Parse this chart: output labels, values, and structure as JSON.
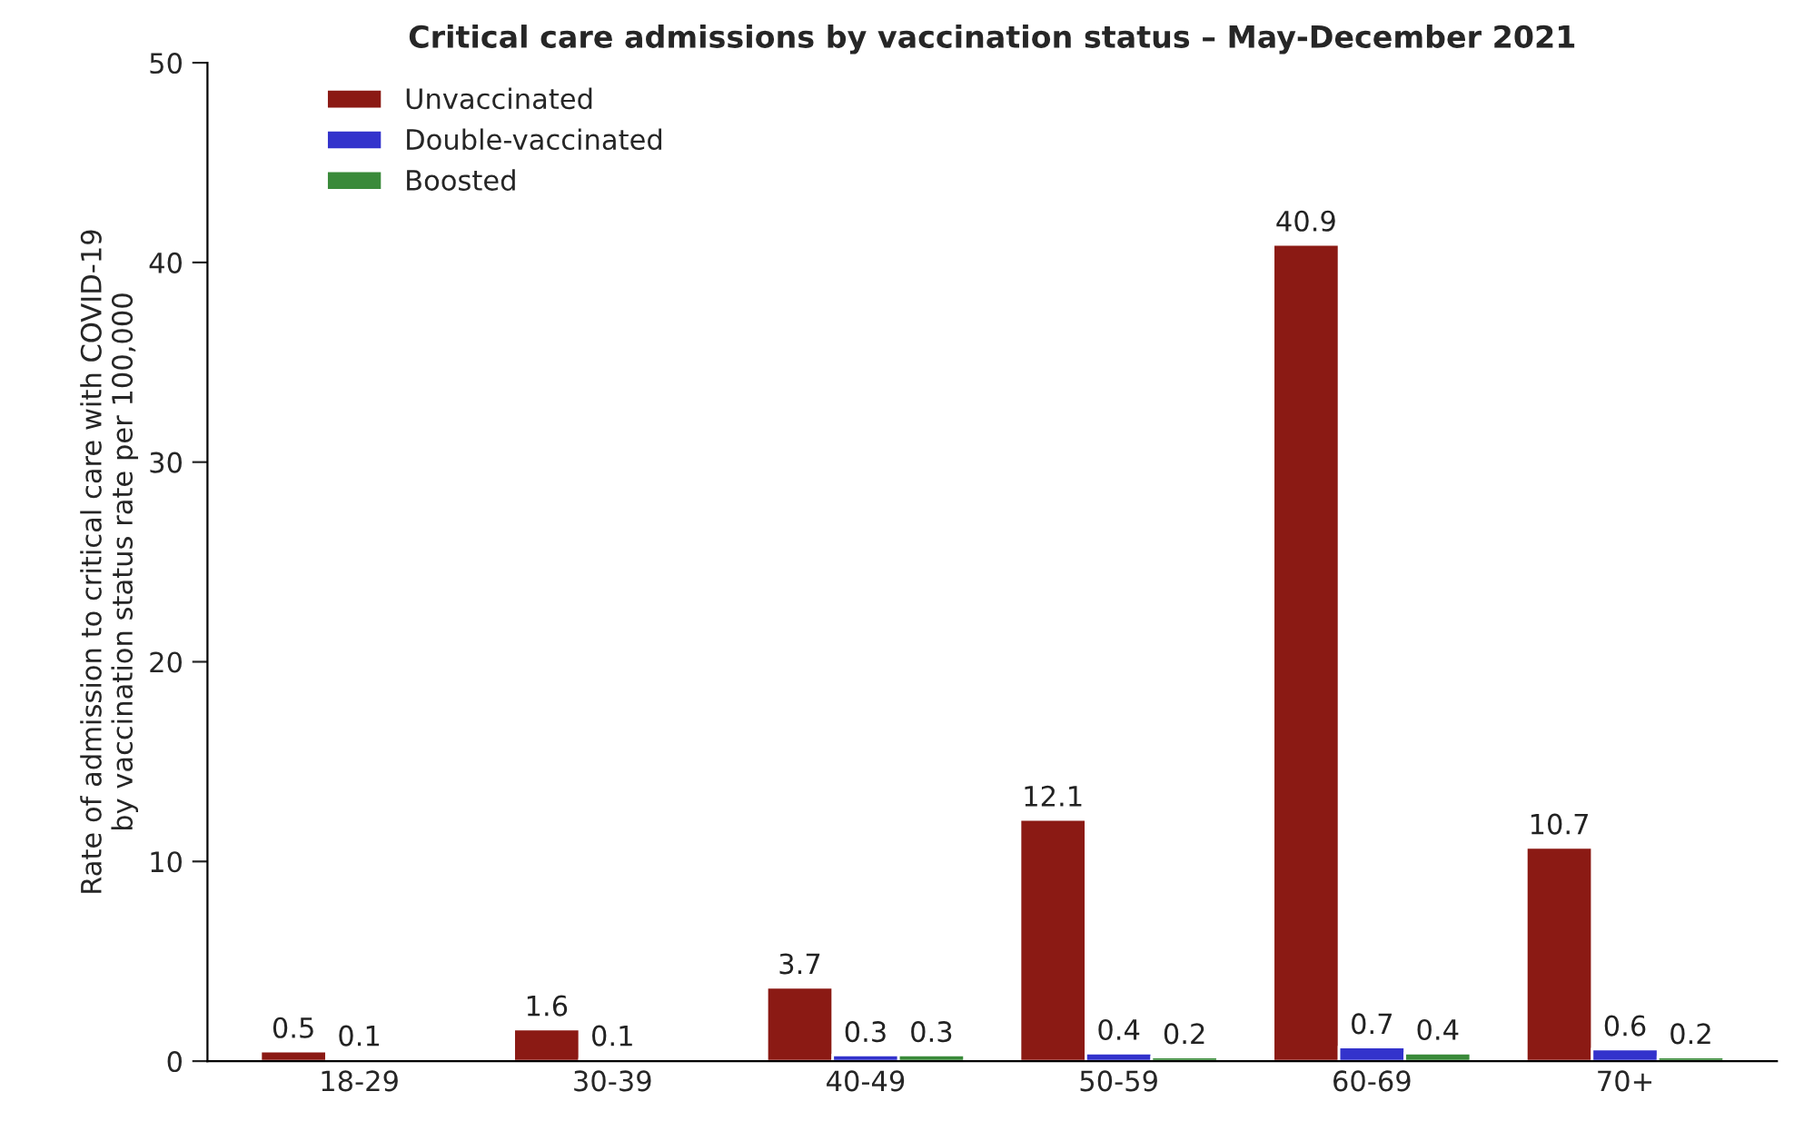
{
  "chart_data": {
    "type": "bar",
    "title": "Critical care admissions by vaccination status – May-December 2021",
    "ylabel": "Rate of admission to critical care with COVID-19\nby vaccination status rate per 100,000",
    "categories": [
      "18-29",
      "30-39",
      "40-49",
      "50-59",
      "60-69",
      "70+"
    ],
    "series": [
      {
        "name": "Unvaccinated",
        "color": "#8b1a14",
        "values": [
          0.5,
          1.6,
          3.7,
          12.1,
          40.9,
          10.7
        ]
      },
      {
        "name": "Double-vaccinated",
        "color": "#3333cc",
        "values": [
          0.1,
          0.1,
          0.3,
          0.4,
          0.7,
          0.6
        ]
      },
      {
        "name": "Boosted",
        "color": "#3a8a3a",
        "values": [
          null,
          null,
          0.3,
          0.2,
          0.4,
          0.2
        ]
      }
    ],
    "ylim": [
      0,
      50
    ],
    "yticks": [
      0,
      10,
      20,
      30,
      40,
      50
    ],
    "grid": false,
    "legend": "top left",
    "data_labels": true
  }
}
